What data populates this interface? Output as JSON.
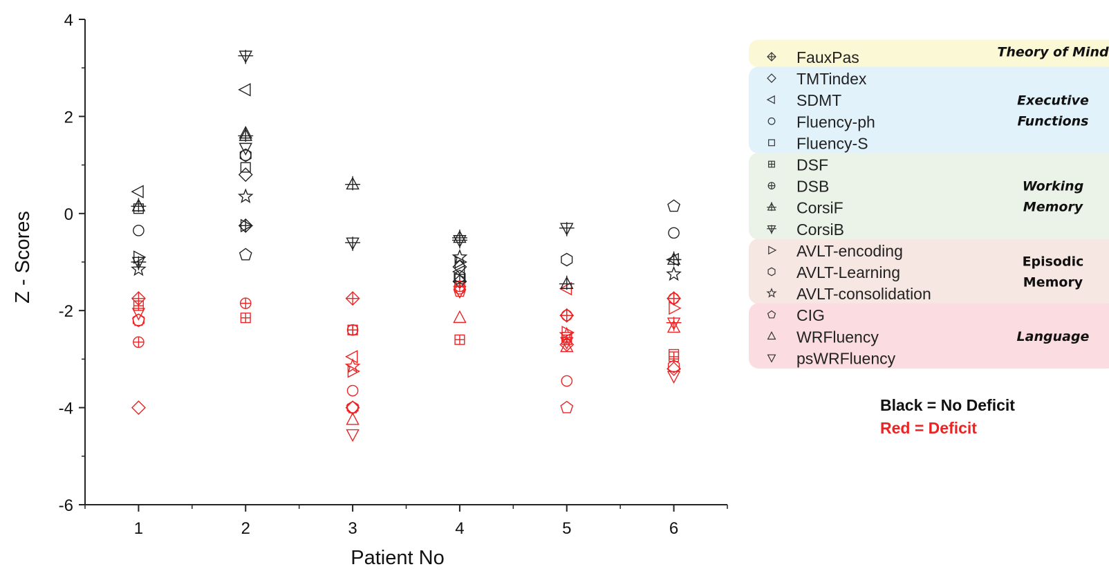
{
  "chart_data": {
    "type": "scatter",
    "xlabel": "Patient No",
    "ylabel": "Z - Scores",
    "xlim": [
      0.5,
      6.5
    ],
    "ylim": [
      -6,
      4
    ],
    "x_ticks": [
      1,
      2,
      3,
      4,
      5,
      6
    ],
    "y_ticks": [
      -6,
      -4,
      -2,
      0,
      2,
      4
    ],
    "grid": false,
    "legend_position": "right",
    "colors": {
      "no_deficit": "#222222",
      "deficit": "#ee2222"
    },
    "legend_groups": [
      {
        "label": "Theory of Mind",
        "color": "#fbf8d6",
        "measures": [
          "FauxPas"
        ]
      },
      {
        "label": "Executive Functions",
        "color": "#e1f2fb",
        "measures": [
          "TMTindex",
          "SDMT",
          "Fluency-ph",
          "Fluency-S"
        ]
      },
      {
        "label": "Working Memory",
        "color": "#ebf3e8",
        "measures": [
          "DSF",
          "DSB",
          "CorsiF",
          "CorsiB"
        ]
      },
      {
        "label": "Episodic Memory",
        "color": "#f6e7e2",
        "measures": [
          "AVLT-encoding",
          "AVLT-Learning",
          "AVLT-consolidation"
        ]
      },
      {
        "label": "Language",
        "color": "#fbdde1",
        "measures": [
          "CIG",
          "WRFluency",
          "psWRFluency"
        ]
      }
    ],
    "series": [
      {
        "name": "FauxPas",
        "marker": "crossed-diamond",
        "points": [
          [
            1,
            -1.75,
            "deficit"
          ],
          [
            2,
            -0.25,
            "no_deficit"
          ],
          [
            3,
            -1.75,
            "deficit"
          ],
          [
            4,
            -1.4,
            "no_deficit"
          ],
          [
            5,
            -2.1,
            "deficit"
          ],
          [
            6,
            -1.75,
            "deficit"
          ]
        ]
      },
      {
        "name": "TMTindex",
        "marker": "diamond",
        "points": [
          [
            1,
            -4.0,
            "deficit"
          ],
          [
            2,
            0.8,
            "no_deficit"
          ],
          [
            3,
            -4.0,
            "deficit"
          ],
          [
            4,
            -1.1,
            "no_deficit"
          ],
          [
            5,
            -2.7,
            "deficit"
          ],
          [
            6,
            -3.2,
            "deficit"
          ]
        ]
      },
      {
        "name": "SDMT",
        "marker": "triangle-left",
        "points": [
          [
            1,
            0.45,
            "no_deficit"
          ],
          [
            2,
            2.55,
            "no_deficit"
          ],
          [
            3,
            -2.95,
            "deficit"
          ],
          [
            4,
            -1.2,
            "no_deficit"
          ],
          [
            5,
            -1.55,
            "deficit"
          ],
          [
            6,
            -0.95,
            "no_deficit"
          ]
        ]
      },
      {
        "name": "Fluency-ph",
        "marker": "circle",
        "points": [
          [
            1,
            -0.35,
            "no_deficit"
          ],
          [
            2,
            1.2,
            "no_deficit"
          ],
          [
            3,
            -3.65,
            "deficit"
          ],
          [
            4,
            -1.55,
            "deficit"
          ],
          [
            5,
            -3.45,
            "deficit"
          ],
          [
            6,
            -0.4,
            "no_deficit"
          ]
        ]
      },
      {
        "name": "Fluency-S",
        "marker": "square",
        "points": [
          [
            1,
            0.1,
            "no_deficit"
          ],
          [
            2,
            0.95,
            "no_deficit"
          ],
          [
            3,
            -2.4,
            "deficit"
          ],
          [
            4,
            -1.35,
            "no_deficit"
          ],
          [
            5,
            -2.55,
            "deficit"
          ],
          [
            6,
            -2.9,
            "deficit"
          ]
        ]
      },
      {
        "name": "DSF",
        "marker": "boxed-plus",
        "points": [
          [
            1,
            -1.9,
            "deficit"
          ],
          [
            2,
            -2.15,
            "deficit"
          ],
          [
            3,
            -2.4,
            "deficit"
          ],
          [
            4,
            -2.6,
            "deficit"
          ],
          [
            5,
            -2.6,
            "deficit"
          ],
          [
            6,
            -2.95,
            "deficit"
          ]
        ]
      },
      {
        "name": "DSB",
        "marker": "circled-plus",
        "points": [
          [
            1,
            -2.65,
            "deficit"
          ],
          [
            2,
            -1.85,
            "deficit"
          ],
          [
            3,
            -2.4,
            "deficit"
          ],
          [
            4,
            -1.5,
            "deficit"
          ],
          [
            5,
            -2.1,
            "deficit"
          ],
          [
            6,
            -1.75,
            "deficit"
          ]
        ]
      },
      {
        "name": "CorsiF",
        "marker": "triangle-up-plus",
        "points": [
          [
            1,
            0.15,
            "no_deficit"
          ],
          [
            2,
            1.6,
            "no_deficit"
          ],
          [
            3,
            0.6,
            "no_deficit"
          ],
          [
            4,
            -0.5,
            "no_deficit"
          ],
          [
            5,
            -1.45,
            "no_deficit"
          ],
          [
            6,
            -0.95,
            "no_deficit"
          ]
        ]
      },
      {
        "name": "CorsiB",
        "marker": "triangle-down-plus",
        "points": [
          [
            1,
            -1.0,
            "no_deficit"
          ],
          [
            2,
            3.25,
            "no_deficit"
          ],
          [
            3,
            -0.6,
            "no_deficit"
          ],
          [
            4,
            -0.55,
            "no_deficit"
          ],
          [
            5,
            -0.3,
            "no_deficit"
          ],
          [
            6,
            -2.25,
            "deficit"
          ]
        ]
      },
      {
        "name": "AVLT-encoding",
        "marker": "triangle-right",
        "points": [
          [
            1,
            -0.9,
            "no_deficit"
          ],
          [
            2,
            -0.25,
            "no_deficit"
          ],
          [
            3,
            -3.25,
            "deficit"
          ],
          [
            4,
            -1.0,
            "no_deficit"
          ],
          [
            5,
            -2.45,
            "deficit"
          ],
          [
            6,
            -1.95,
            "deficit"
          ]
        ]
      },
      {
        "name": "AVLT-Learning",
        "marker": "hexagon",
        "points": [
          [
            1,
            -2.2,
            "deficit"
          ],
          [
            2,
            1.2,
            "no_deficit"
          ],
          [
            3,
            -4.0,
            "deficit"
          ],
          [
            4,
            -1.3,
            "no_deficit"
          ],
          [
            5,
            -0.95,
            "no_deficit"
          ],
          [
            6,
            -3.15,
            "deficit"
          ]
        ]
      },
      {
        "name": "AVLT-consolidation",
        "marker": "star",
        "points": [
          [
            1,
            -1.15,
            "no_deficit"
          ],
          [
            2,
            0.35,
            "no_deficit"
          ],
          [
            3,
            -3.15,
            "deficit"
          ],
          [
            4,
            -0.9,
            "no_deficit"
          ],
          [
            5,
            -2.5,
            "deficit"
          ],
          [
            6,
            -1.25,
            "no_deficit"
          ]
        ]
      },
      {
        "name": "CIG",
        "marker": "pentagon",
        "points": [
          [
            1,
            -2.2,
            "deficit"
          ],
          [
            2,
            -0.85,
            "no_deficit"
          ],
          [
            3,
            -4.0,
            "deficit"
          ],
          [
            4,
            -1.6,
            "deficit"
          ],
          [
            5,
            -4.0,
            "deficit"
          ],
          [
            6,
            0.15,
            "no_deficit"
          ]
        ]
      },
      {
        "name": "WRFluency",
        "marker": "triangle-up",
        "points": [
          [
            1,
            0.15,
            "no_deficit"
          ],
          [
            2,
            1.65,
            "no_deficit"
          ],
          [
            3,
            -4.25,
            "deficit"
          ],
          [
            4,
            -2.15,
            "deficit"
          ],
          [
            5,
            -2.75,
            "deficit"
          ],
          [
            6,
            -2.35,
            "deficit"
          ]
        ]
      },
      {
        "name": "psWRFluency",
        "marker": "triangle-down",
        "points": [
          [
            1,
            -2.05,
            "deficit"
          ],
          [
            2,
            1.35,
            "no_deficit"
          ],
          [
            3,
            -4.55,
            "deficit"
          ],
          [
            4,
            -1.6,
            "deficit"
          ],
          [
            5,
            -2.65,
            "deficit"
          ],
          [
            6,
            -3.35,
            "deficit"
          ]
        ]
      }
    ]
  },
  "notes": {
    "black": "Black = No Deficit",
    "red": "Red = Deficit"
  }
}
